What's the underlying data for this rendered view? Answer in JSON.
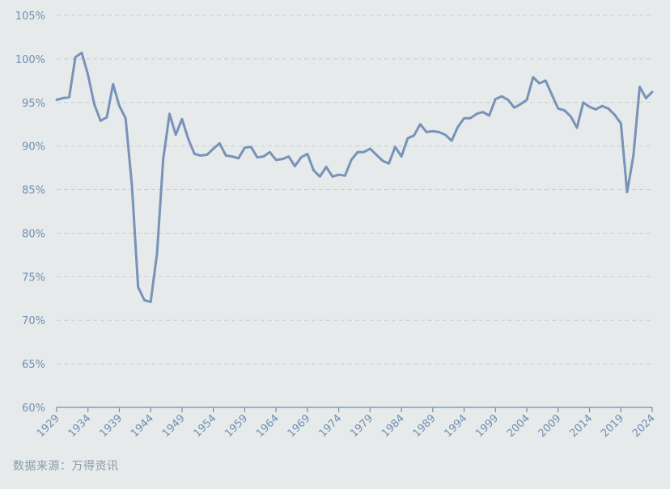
{
  "chart_data": {
    "type": "line",
    "title": "",
    "xlabel": "",
    "ylabel": "",
    "ylim": [
      60,
      105
    ],
    "y_ticks": [
      60,
      65,
      70,
      75,
      80,
      85,
      90,
      95,
      100,
      105
    ],
    "y_tick_labels": [
      "60%",
      "65%",
      "70%",
      "75%",
      "80%",
      "85%",
      "90%",
      "95%",
      "100%",
      "105%"
    ],
    "x_ticks": [
      1929,
      1934,
      1939,
      1944,
      1949,
      1954,
      1959,
      1964,
      1969,
      1974,
      1979,
      1984,
      1989,
      1994,
      1999,
      2004,
      2009,
      2014,
      2019,
      2024
    ],
    "x_tick_labels": [
      "1929",
      "1934",
      "1939",
      "1944",
      "1949",
      "1954",
      "1959",
      "1964",
      "1969",
      "1974",
      "1979",
      "1984",
      "1989",
      "1994",
      "1999",
      "2004",
      "2009",
      "2014",
      "2019",
      "2024"
    ],
    "grid": true,
    "series": [
      {
        "x": [
          1929,
          1930,
          1931,
          1932,
          1933,
          1934,
          1935,
          1936,
          1937,
          1938,
          1939,
          1940,
          1941,
          1942,
          1943,
          1944,
          1945,
          1946,
          1947,
          1948,
          1949,
          1950,
          1951,
          1952,
          1953,
          1954,
          1955,
          1956,
          1957,
          1958,
          1959,
          1960,
          1961,
          1962,
          1963,
          1964,
          1965,
          1966,
          1967,
          1968,
          1969,
          1970,
          1971,
          1972,
          1973,
          1974,
          1975,
          1976,
          1977,
          1978,
          1979,
          1980,
          1981,
          1982,
          1983,
          1984,
          1985,
          1986,
          1987,
          1988,
          1989,
          1990,
          1991,
          1992,
          1993,
          1994,
          1995,
          1996,
          1997,
          1998,
          1999,
          2000,
          2001,
          2002,
          2003,
          2004,
          2005,
          2006,
          2007,
          2008,
          2009,
          2010,
          2011,
          2012,
          2013,
          2014,
          2015,
          2016,
          2017,
          2018,
          2019,
          2020,
          2021,
          2022,
          2023,
          2024
        ],
        "values": [
          95.3,
          95.5,
          95.6,
          100.2,
          100.7,
          98.2,
          94.8,
          92.9,
          93.3,
          97.1,
          94.6,
          93.2,
          85.5,
          73.8,
          72.3,
          72.1,
          77.6,
          88.5,
          93.7,
          91.3,
          93.1,
          90.8,
          89.1,
          88.9,
          89.0,
          89.7,
          90.3,
          88.9,
          88.8,
          88.6,
          89.8,
          89.9,
          88.7,
          88.8,
          89.3,
          88.4,
          88.5,
          88.8,
          87.7,
          88.7,
          89.1,
          87.2,
          86.5,
          87.6,
          86.5,
          86.7,
          86.6,
          88.4,
          89.3,
          89.3,
          89.7,
          89.0,
          88.3,
          88.0,
          89.9,
          88.8,
          90.9,
          91.2,
          92.5,
          91.6,
          91.7,
          91.6,
          91.3,
          90.6,
          92.2,
          93.2,
          93.2,
          93.7,
          93.9,
          93.5,
          95.4,
          95.7,
          95.3,
          94.4,
          94.8,
          95.3,
          97.9,
          97.2,
          97.5,
          95.9,
          94.3,
          94.1,
          93.4,
          92.1,
          95.0,
          94.5,
          94.2,
          94.6,
          94.3,
          93.6,
          92.6,
          84.7,
          88.9,
          96.8,
          95.5,
          96.2
        ]
      }
    ]
  },
  "source": "数据来源：万得资讯"
}
